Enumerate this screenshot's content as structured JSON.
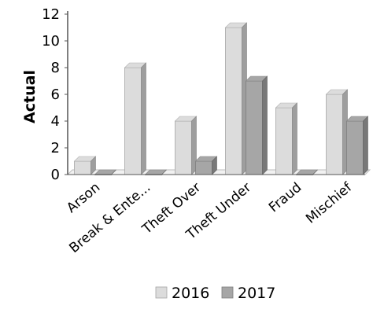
{
  "chart_data": {
    "type": "bar",
    "title": "",
    "xlabel": "",
    "ylabel": "Actual",
    "ylim": [
      0,
      12
    ],
    "yticks": [
      0,
      2,
      4,
      6,
      8,
      10,
      12
    ],
    "categories": [
      "Arson",
      "Break & Ente...",
      "Theft Over",
      "Theft Under",
      "Fraud",
      "Mischief"
    ],
    "series": [
      {
        "name": "2016",
        "color": "#dcdcdc",
        "values": [
          1,
          8,
          4,
          11,
          5,
          6
        ]
      },
      {
        "name": "2017",
        "color": "#a6a6a6",
        "values": [
          0,
          0,
          1,
          7,
          0,
          4
        ]
      }
    ],
    "grid": false,
    "legend": "bottom",
    "style": "3d"
  }
}
